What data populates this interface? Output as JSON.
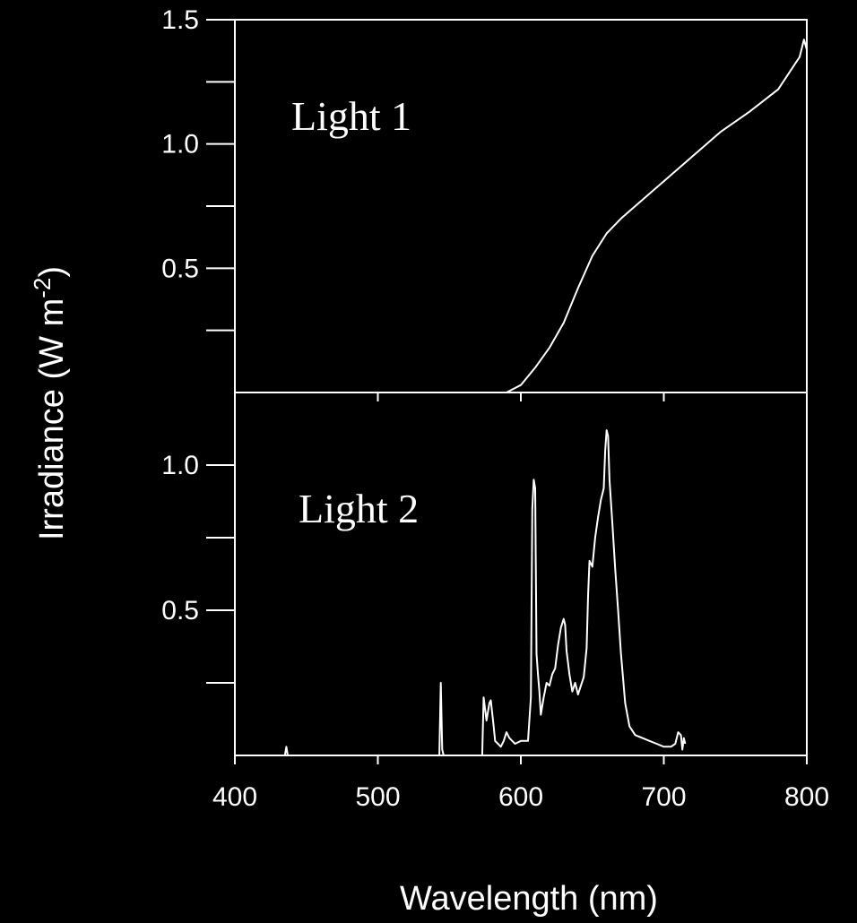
{
  "chart_data": [
    {
      "type": "line",
      "panel_label": "Light 1",
      "xlabel": "Wavelength (nm)",
      "ylabel": "Irradiance (W m-2)",
      "xlim": [
        400,
        800
      ],
      "ylim": [
        0,
        1.5
      ],
      "xticks": [
        400,
        500,
        600,
        700,
        800
      ],
      "yticks_labeled": [
        0.5,
        1.0,
        1.5
      ],
      "ytick_labels": [
        "0.5",
        "1.0",
        "1.5"
      ],
      "yticks_minor": [
        0.25,
        0.75,
        1.25
      ],
      "grid": false,
      "series": [
        {
          "x": [
            400,
            545,
            590,
            600,
            610,
            620,
            630,
            640,
            650,
            660,
            670,
            680,
            700,
            720,
            740,
            760,
            780,
            795,
            798,
            800
          ],
          "y": [
            0.0,
            0.0,
            0.0,
            0.03,
            0.1,
            0.18,
            0.28,
            0.42,
            0.55,
            0.64,
            0.7,
            0.75,
            0.85,
            0.95,
            1.05,
            1.13,
            1.22,
            1.35,
            1.42,
            1.38
          ]
        }
      ]
    },
    {
      "type": "line",
      "panel_label": "Light 2",
      "xlabel": "Wavelength (nm)",
      "ylabel": "Irradiance (W m-2)",
      "xlim": [
        400,
        800
      ],
      "ylim": [
        0,
        1.25
      ],
      "xticks": [
        400,
        500,
        600,
        700,
        800
      ],
      "xtick_labels": [
        "400",
        "500",
        "600",
        "700",
        "800"
      ],
      "yticks_labeled": [
        0.5,
        1.0
      ],
      "ytick_labels": [
        "0.5",
        "1.0"
      ],
      "yticks_minor": [
        0.25,
        0.75
      ],
      "grid": false,
      "series": [
        {
          "x": [
            400,
            435,
            436,
            437,
            543,
            544,
            545,
            546,
            573,
            574,
            576,
            578,
            579,
            581,
            582,
            584,
            586,
            588,
            590,
            592,
            594,
            596,
            600,
            605,
            607,
            608,
            609,
            610,
            611,
            612,
            613,
            614,
            616,
            618,
            620,
            622,
            624,
            626,
            628,
            630,
            631,
            632,
            634,
            636,
            638,
            640,
            642,
            644,
            646,
            647,
            648,
            650,
            652,
            654,
            656,
            658,
            659,
            660,
            661,
            662,
            664,
            666,
            668,
            670,
            673,
            676,
            680,
            685,
            690,
            695,
            700,
            705,
            708,
            710,
            712,
            713,
            714,
            715
          ],
          "y": [
            0.0,
            0.0,
            0.03,
            0.0,
            0.0,
            0.25,
            0.02,
            0.0,
            0.0,
            0.2,
            0.12,
            0.18,
            0.19,
            0.1,
            0.05,
            0.04,
            0.03,
            0.05,
            0.08,
            0.06,
            0.05,
            0.04,
            0.05,
            0.05,
            0.2,
            0.85,
            0.95,
            0.92,
            0.35,
            0.28,
            0.22,
            0.14,
            0.2,
            0.25,
            0.24,
            0.28,
            0.3,
            0.38,
            0.44,
            0.47,
            0.45,
            0.36,
            0.28,
            0.22,
            0.25,
            0.21,
            0.24,
            0.27,
            0.37,
            0.55,
            0.67,
            0.65,
            0.75,
            0.82,
            0.88,
            0.92,
            1.05,
            1.12,
            1.1,
            0.95,
            0.8,
            0.64,
            0.5,
            0.35,
            0.18,
            0.1,
            0.07,
            0.06,
            0.05,
            0.04,
            0.03,
            0.03,
            0.04,
            0.08,
            0.07,
            0.02,
            0.06,
            0.04
          ]
        }
      ]
    }
  ]
}
